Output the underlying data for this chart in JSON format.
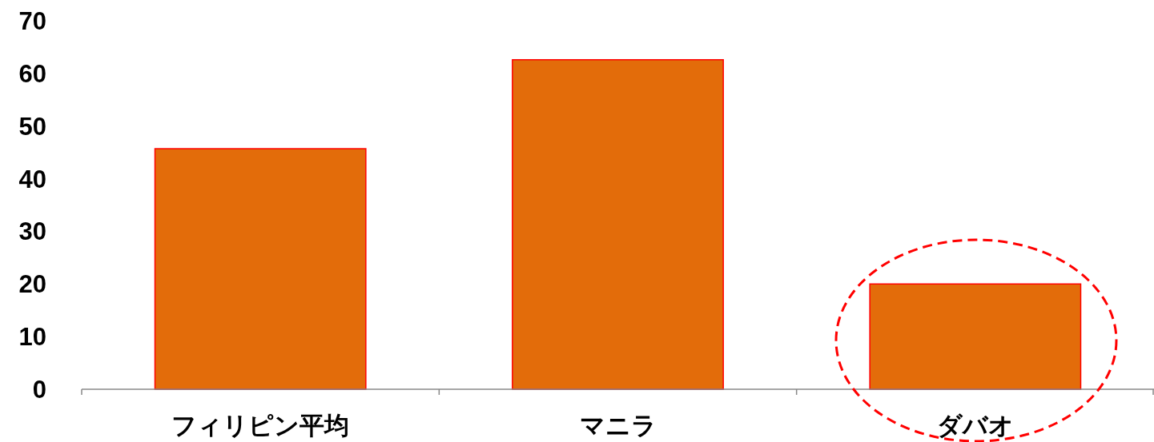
{
  "chart_data": {
    "type": "bar",
    "categories": [
      "フィリピン平均",
      "マニラ",
      "ダバオ"
    ],
    "series": [
      {
        "color": "#e36c0a",
        "values": [
          45.7,
          62.6,
          20
        ]
      }
    ],
    "ylim": [
      0,
      70
    ],
    "yticks": [
      0,
      10,
      20,
      30,
      40,
      50,
      60,
      70
    ],
    "grid": false
  }
}
